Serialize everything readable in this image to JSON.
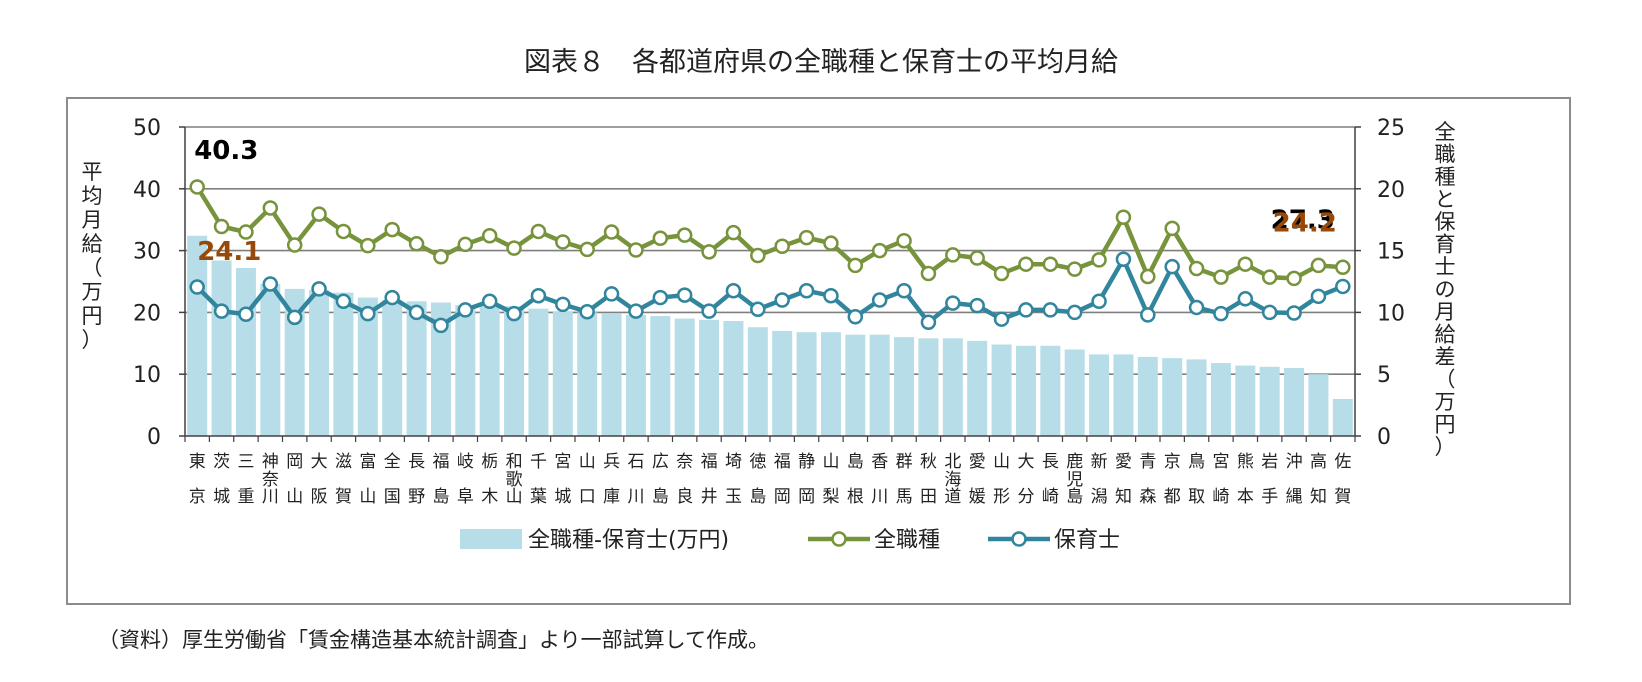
{
  "title": "図表８　各都道府県の全職種と保育士の平均月給",
  "source": "（資料）厚生労働省「賃金構造基本統計調査」より一部試算して作成。",
  "colors": {
    "diff_bar": "#b7dde8",
    "all_jobs": "#77933c",
    "nursery": "#31859c",
    "grid": "#7f7f7f",
    "axis": "#404040",
    "callout_black": "#000000",
    "callout_brown": "#984807"
  },
  "chart_data": {
    "type": "bar+line",
    "title": "図表８　各都道府県の全職種と保育士の平均月給",
    "ylabel_left": "平均月給（万円）",
    "ylabel_right": "全職種と保育士の月給差（万円）",
    "ylim_left": [
      0,
      50
    ],
    "yticks_left": [
      0,
      10,
      20,
      30,
      40,
      50
    ],
    "ylim_right": [
      0,
      25
    ],
    "yticks_right": [
      0,
      5,
      10,
      15,
      20,
      25
    ],
    "grid": true,
    "legend_position": "bottom",
    "categories": [
      "東京",
      "茨城",
      "三重",
      "神奈川",
      "岡山",
      "大阪",
      "滋賀",
      "富山",
      "全国",
      "長野",
      "福島",
      "岐阜",
      "栃木",
      "和歌山",
      "千葉",
      "宮城",
      "山口",
      "兵庫",
      "石川",
      "広島",
      "奈良",
      "福井",
      "埼玉",
      "徳島",
      "福岡",
      "静岡",
      "山梨",
      "島根",
      "香川",
      "群馬",
      "秋田",
      "北海道",
      "愛媛",
      "山形",
      "大分",
      "長崎",
      "鹿児島",
      "新潟",
      "愛知",
      "青森",
      "京都",
      "鳥取",
      "宮崎",
      "熊本",
      "岩手",
      "沖縄",
      "高知",
      "佐賀"
    ],
    "series": [
      {
        "name": "全職種-保育士(万円)",
        "type": "bar",
        "axis": "right",
        "values": [
          16.2,
          14.2,
          13.6,
          12.3,
          11.9,
          11.8,
          11.6,
          11.2,
          11.0,
          10.9,
          10.8,
          10.6,
          10.5,
          10.5,
          10.3,
          10.1,
          10.0,
          9.9,
          9.8,
          9.7,
          9.5,
          9.4,
          9.3,
          8.8,
          8.5,
          8.4,
          8.4,
          8.2,
          8.2,
          8.0,
          7.9,
          7.9,
          7.7,
          7.4,
          7.3,
          7.3,
          7.0,
          6.6,
          6.6,
          6.4,
          6.3,
          6.2,
          5.9,
          5.7,
          5.6,
          5.5,
          5.0,
          3.0
        ]
      },
      {
        "name": "全職種",
        "type": "line",
        "axis": "left",
        "values": [
          40.3,
          33.9,
          33.0,
          36.9,
          30.9,
          35.9,
          33.1,
          30.8,
          33.4,
          31.1,
          29.0,
          31.0,
          32.4,
          30.4,
          33.1,
          31.4,
          30.2,
          33.0,
          30.1,
          32.0,
          32.5,
          29.8,
          32.9,
          29.2,
          30.7,
          32.1,
          31.2,
          27.6,
          30.0,
          31.6,
          26.3,
          29.3,
          28.8,
          26.3,
          27.8,
          27.8,
          27.0,
          28.5,
          35.4,
          25.8,
          33.6,
          27.1,
          25.7,
          27.8,
          25.7,
          25.5,
          27.6,
          27.3
        ]
      },
      {
        "name": "保育士",
        "type": "line",
        "axis": "left",
        "values": [
          24.1,
          20.2,
          19.7,
          24.6,
          19.2,
          23.8,
          21.8,
          19.8,
          22.4,
          20.0,
          17.9,
          20.4,
          21.8,
          19.8,
          22.7,
          21.3,
          20.1,
          23.0,
          20.2,
          22.4,
          22.8,
          20.2,
          23.5,
          20.5,
          22.0,
          23.5,
          22.7,
          19.3,
          22.0,
          23.5,
          18.4,
          21.5,
          21.1,
          18.9,
          20.4,
          20.4,
          20.0,
          21.8,
          28.6,
          19.6,
          27.4,
          20.8,
          19.8,
          22.2,
          20.0,
          19.9,
          22.6,
          24.2
        ]
      }
    ],
    "annotations": [
      {
        "text": "40.3",
        "series": "全職種",
        "category": "東京"
      },
      {
        "text": "24.1",
        "series": "保育士",
        "category": "東京"
      },
      {
        "text": "27.3",
        "series": "全職種",
        "category": "佐賀"
      },
      {
        "text": "24.2",
        "series": "保育士",
        "category": "佐賀"
      }
    ]
  }
}
